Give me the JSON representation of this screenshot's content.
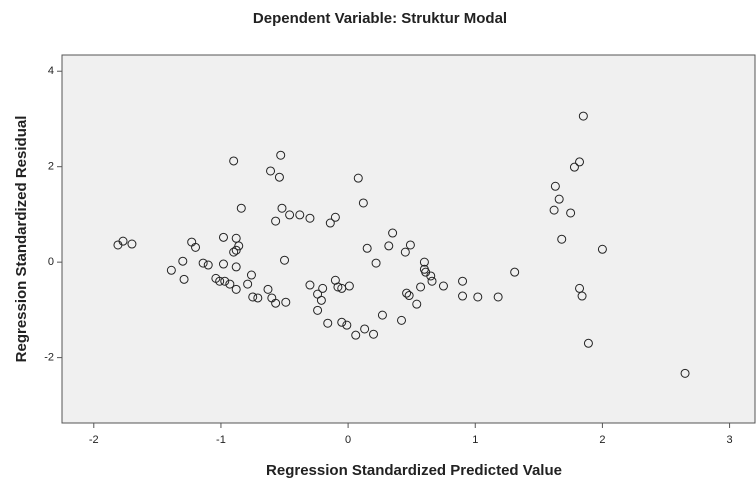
{
  "chart_data": {
    "type": "scatter",
    "title": "Dependent Variable: Struktur Modal",
    "x_label": "Regression Standardized Predicted Value",
    "y_label": "Regression Standardized Residual",
    "xlim": [
      -2.25,
      3.2
    ],
    "ylim": [
      -3.37,
      4.34
    ],
    "xticks": [
      -2,
      -1,
      0,
      1,
      2,
      3
    ],
    "yticks": [
      -2,
      0,
      2,
      4
    ],
    "color": "#222222",
    "background": "#f0f0f0",
    "x": [
      -1.81,
      -1.77,
      -1.7,
      -1.39,
      -1.3,
      -1.29,
      -1.23,
      -1.2,
      -1.14,
      -1.1,
      -1.04,
      -1.01,
      -0.97,
      -0.93,
      -0.88,
      -0.98,
      -0.88,
      -0.86,
      -0.88,
      -0.9,
      -0.9,
      -0.84,
      -0.88,
      -0.98,
      -0.76,
      -0.79,
      -0.75,
      -0.71,
      -0.63,
      -0.6,
      -0.57,
      -0.49,
      -0.61,
      -0.53,
      -0.54,
      -0.52,
      -0.57,
      -0.46,
      -0.5,
      -0.38,
      -0.3,
      -0.3,
      -0.24,
      -0.21,
      -0.2,
      -0.24,
      -0.16,
      -0.14,
      -0.1,
      -0.1,
      -0.08,
      -0.05,
      0.01,
      -0.05,
      -0.01,
      0.08,
      0.12,
      0.15,
      0.22,
      0.06,
      0.13,
      0.2,
      0.27,
      0.32,
      0.35,
      0.45,
      0.49,
      0.42,
      0.46,
      0.48,
      0.54,
      0.6,
      0.6,
      0.61,
      0.65,
      0.66,
      0.57,
      0.75,
      0.9,
      0.9,
      1.02,
      1.18,
      1.31,
      1.62,
      1.63,
      1.66,
      1.68,
      1.75,
      1.78,
      1.82,
      1.85,
      1.82,
      1.84,
      1.89,
      2.0,
      2.65
    ],
    "values": [
      0.36,
      0.44,
      0.38,
      -0.17,
      0.02,
      -0.36,
      0.42,
      0.31,
      -0.02,
      -0.06,
      -0.34,
      -0.4,
      -0.4,
      -0.46,
      -0.57,
      0.52,
      0.5,
      0.34,
      0.25,
      0.21,
      2.12,
      1.13,
      -0.1,
      -0.04,
      -0.27,
      -0.46,
      -0.73,
      -0.75,
      -0.57,
      -0.75,
      -0.86,
      -0.84,
      1.91,
      2.24,
      1.78,
      1.13,
      0.86,
      0.99,
      0.04,
      0.99,
      0.92,
      -0.48,
      -0.67,
      -0.8,
      -0.55,
      -1.01,
      -1.28,
      0.82,
      0.94,
      -0.38,
      -0.52,
      -0.55,
      -0.5,
      -1.26,
      -1.32,
      1.76,
      1.24,
      0.29,
      -0.02,
      -1.53,
      -1.4,
      -1.51,
      -1.11,
      0.34,
      0.61,
      0.21,
      0.36,
      -1.22,
      -0.65,
      -0.7,
      -0.88,
      0.0,
      -0.15,
      -0.21,
      -0.29,
      -0.4,
      -0.52,
      -0.5,
      -0.4,
      -0.71,
      -0.73,
      -0.73,
      -0.21,
      1.09,
      1.59,
      1.32,
      0.48,
      1.03,
      1.99,
      2.1,
      3.06,
      -0.55,
      -0.71,
      -1.7,
      0.27,
      -2.33
    ]
  }
}
